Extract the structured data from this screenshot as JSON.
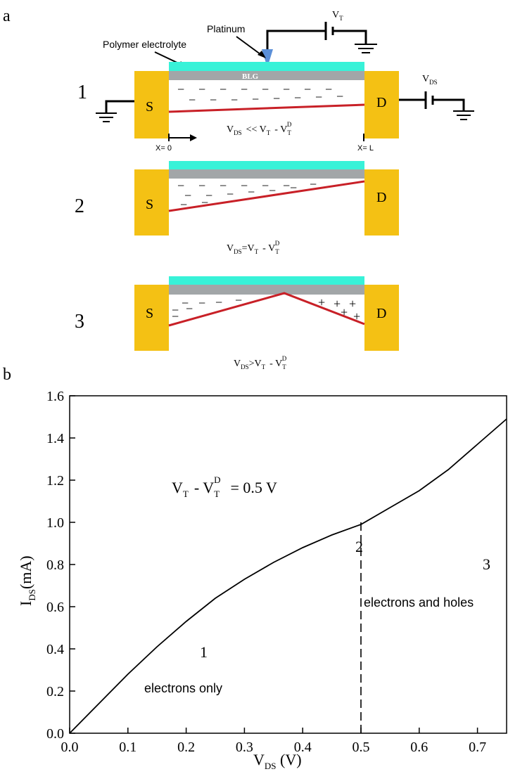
{
  "colors": {
    "electrode": "#f4c114",
    "electrolyte": "#38f2d8",
    "blg": "#a2a6a8",
    "potential_line": "#c82027",
    "tip": "#5b8fd8",
    "ink": "#000000"
  },
  "schematic": {
    "panel_label": "a",
    "top_labels": {
      "platinum": "Platinum",
      "polymer": "Polymer electrolyte",
      "blg": "BLG",
      "vt": "V",
      "vt_sub": "T",
      "vds": "V",
      "vds_sub": "DS",
      "x0": "X= 0",
      "xl": "X= L"
    },
    "devices": [
      {
        "number": "1",
        "source": "S",
        "drain": "D",
        "eq_v1": "V",
        "eq_v1_sub": "DS",
        "eq_op": "<< V",
        "eq_sub": "T",
        "eq_minus": "- V",
        "eq_sub2": "T",
        "eq_sup": "D",
        "charges_minus": "−",
        "charges_plus": ""
      },
      {
        "number": "2",
        "source": "S",
        "drain": "D",
        "eq_v1": "V",
        "eq_v1_sub": "DS",
        "eq_op": "=V",
        "eq_sub": "T",
        "eq_minus": "- V",
        "eq_sub2": "T",
        "eq_sup": "D",
        "charges_minus": "−",
        "charges_plus": ""
      },
      {
        "number": "3",
        "source": "S",
        "drain": "D",
        "eq_v1": "V",
        "eq_v1_sub": "DS",
        "eq_op": ">V",
        "eq_sub": "T",
        "eq_minus": "- V",
        "eq_sub2": "T",
        "eq_sup": "D",
        "charges_minus": "−",
        "charges_plus": "+"
      }
    ]
  },
  "chart_data": {
    "type": "line",
    "panel_label": "b",
    "xlabel": "V",
    "xlabel_sub": "DS",
    "xlabel_unit": " (V)",
    "ylabel": "I",
    "ylabel_sub": "DS",
    "ylabel_unit": "(mA)",
    "xlim": [
      0.0,
      0.75
    ],
    "ylim": [
      0.0,
      1.6
    ],
    "xticks": [
      0.0,
      0.1,
      0.2,
      0.3,
      0.4,
      0.5,
      0.6,
      0.7
    ],
    "xtick_labels": [
      "0.0",
      "0.1",
      "0.2",
      "0.3",
      "0.4",
      "0.5",
      "0.6",
      "0.7"
    ],
    "yticks": [
      0.0,
      0.2,
      0.4,
      0.6,
      0.8,
      1.0,
      1.2,
      1.4,
      1.6
    ],
    "ytick_labels": [
      "0.0",
      "0.2",
      "0.4",
      "0.6",
      "0.8",
      "1.0",
      "1.2",
      "1.4",
      "1.6"
    ],
    "series": [
      {
        "name": "I_DS",
        "x": [
          0.0,
          0.05,
          0.1,
          0.15,
          0.2,
          0.25,
          0.3,
          0.35,
          0.4,
          0.45,
          0.5,
          0.55,
          0.6,
          0.65,
          0.7,
          0.75
        ],
        "y": [
          0.0,
          0.14,
          0.28,
          0.41,
          0.53,
          0.64,
          0.73,
          0.81,
          0.88,
          0.94,
          0.99,
          1.07,
          1.15,
          1.25,
          1.37,
          1.49
        ]
      }
    ],
    "vline": {
      "x": 0.5,
      "y0": 0.0,
      "y1": 1.0,
      "style": "dashed"
    },
    "annotations": {
      "eq_v": "V",
      "eq_t": "T",
      "eq_minus": "- V",
      "eq_t2": "T",
      "eq_d": "D",
      "eq_rhs": "= 0.5  V",
      "region1": "1",
      "region1_text": "electrons only",
      "region2": "2",
      "region3": "3",
      "region3_text": "electrons and holes"
    }
  }
}
